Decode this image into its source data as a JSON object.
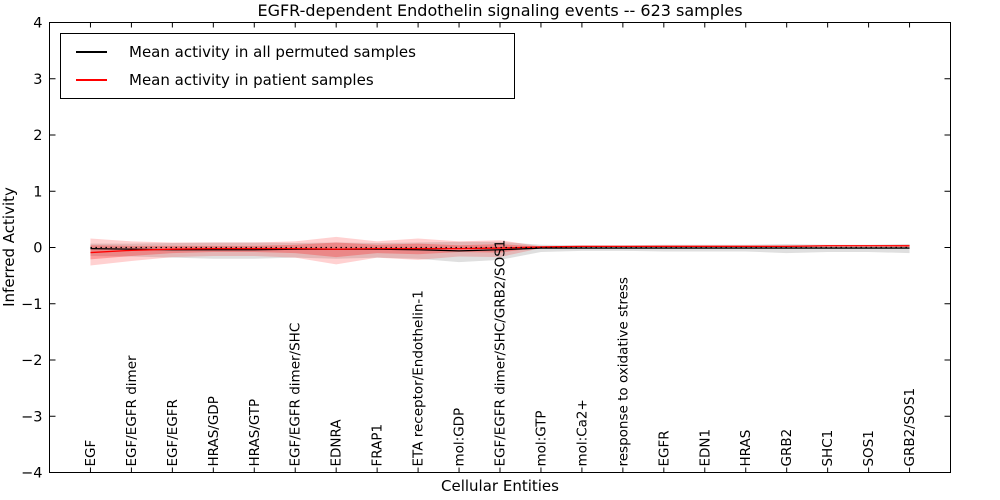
{
  "title": "EGFR-dependent Endothelin signaling events -- 623 samples",
  "legend": {
    "items": [
      {
        "label": "Mean activity in all permuted samples",
        "color": "#000000"
      },
      {
        "label": "Mean activity in patient samples",
        "color": "#ff0000"
      }
    ]
  },
  "chart_data": {
    "type": "line",
    "title": "EGFR-dependent Endothelin signaling events -- 623 samples",
    "xlabel": "Cellular Entities",
    "ylabel": "Inferred Activity",
    "ylim": [
      -4,
      4
    ],
    "yticks": [
      -4,
      -3,
      -2,
      -1,
      0,
      1,
      2,
      3,
      4
    ],
    "grid": false,
    "legend_position": "upper left",
    "x_tick_label_rotation": 90,
    "categories": [
      "EGF",
      "EGF/EGFR dimer",
      "EGF/EGFR",
      "HRAS/GDP",
      "HRAS/GTP",
      "EGF/EGFR dimer/SHC",
      "EDNRA",
      "FRAP1",
      "ETA receptor/Endothelin-1",
      "mol:GDP",
      "EGF/EGFR dimer/SHC/GRB2/SOS1",
      "mol:GTP",
      "mol:Ca2+",
      "response to oxidative stress",
      "EGFR",
      "EDN1",
      "HRAS",
      "GRB2",
      "SHC1",
      "SOS1",
      "GRB2/SOS1"
    ],
    "zero_line": {
      "y": 0,
      "style": "dotted",
      "color": "#000000"
    },
    "series": [
      {
        "name": "Mean activity in all permuted samples",
        "color": "#000000",
        "values": [
          -0.02,
          -0.03,
          -0.04,
          -0.04,
          -0.04,
          -0.03,
          -0.03,
          -0.03,
          -0.04,
          -0.06,
          -0.04,
          -0.01,
          -0.01,
          -0.01,
          -0.01,
          -0.01,
          -0.01,
          -0.01,
          -0.01,
          -0.01,
          -0.01
        ],
        "bands": [
          {
            "fill": "rgba(110,110,110,0.22)",
            "upper": [
              0.07,
              0.07,
              0.08,
              0.09,
              0.09,
              0.08,
              0.09,
              0.08,
              0.09,
              0.1,
              0.1,
              0.05,
              0.04,
              0.04,
              0.05,
              0.05,
              0.05,
              0.06,
              0.05,
              0.05,
              0.06
            ],
            "lower": [
              -0.15,
              -0.16,
              -0.18,
              -0.2,
              -0.2,
              -0.18,
              -0.2,
              -0.18,
              -0.2,
              -0.26,
              -0.22,
              -0.08,
              -0.06,
              -0.06,
              -0.07,
              -0.07,
              -0.07,
              -0.1,
              -0.08,
              -0.08,
              -0.1
            ]
          }
        ]
      },
      {
        "name": "Mean activity in patient samples",
        "color": "#ff0000",
        "values": [
          -0.09,
          -0.05,
          -0.03,
          -0.02,
          -0.02,
          -0.02,
          -0.03,
          -0.02,
          -0.02,
          -0.02,
          -0.01,
          0.01,
          0.02,
          0.02,
          0.02,
          0.02,
          0.02,
          0.02,
          0.03,
          0.03,
          0.03
        ],
        "bands": [
          {
            "fill": "rgba(255,0,0,0.18)",
            "upper": [
              0.16,
              0.11,
              0.09,
              0.09,
              0.09,
              0.11,
              0.19,
              0.11,
              0.16,
              0.11,
              0.13,
              0.02,
              0.03,
              0.03,
              0.04,
              0.04,
              0.04,
              0.04,
              0.04,
              0.04,
              0.05
            ],
            "lower": [
              -0.32,
              -0.24,
              -0.17,
              -0.15,
              -0.15,
              -0.18,
              -0.3,
              -0.18,
              -0.22,
              -0.16,
              -0.17,
              -0.01,
              0.01,
              0.01,
              0.01,
              0.01,
              0.01,
              0.01,
              0.02,
              0.02,
              0.01
            ]
          },
          {
            "fill": "rgba(255,0,0,0.26)",
            "upper": [
              0.04,
              0.03,
              0.03,
              0.03,
              0.03,
              0.05,
              0.09,
              0.05,
              0.07,
              0.04,
              0.06,
              0.015,
              0.025,
              0.025,
              0.03,
              0.03,
              0.03,
              0.03,
              0.035,
              0.035,
              0.04
            ],
            "lower": [
              -0.21,
              -0.15,
              -0.1,
              -0.08,
              -0.08,
              -0.1,
              -0.17,
              -0.1,
              -0.12,
              -0.08,
              -0.09,
              0.005,
              0.015,
              0.015,
              0.01,
              0.01,
              0.01,
              0.01,
              0.02,
              0.02,
              0.02
            ]
          }
        ]
      }
    ]
  }
}
